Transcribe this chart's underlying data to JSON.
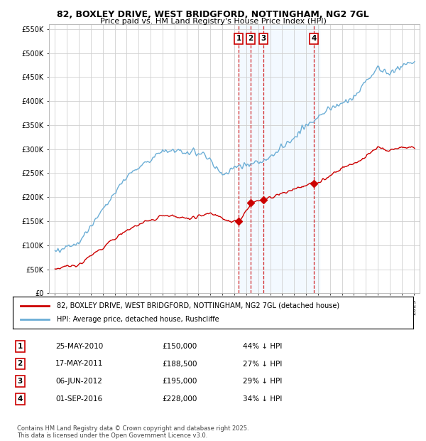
{
  "title1": "82, BOXLEY DRIVE, WEST BRIDGFORD, NOTTINGHAM, NG2 7GL",
  "title2": "Price paid vs. HM Land Registry's House Price Index (HPI)",
  "legend_property": "82, BOXLEY DRIVE, WEST BRIDGFORD, NOTTINGHAM, NG2 7GL (detached house)",
  "legend_hpi": "HPI: Average price, detached house, Rushcliffe",
  "footer1": "Contains HM Land Registry data © Crown copyright and database right 2025.",
  "footer2": "This data is licensed under the Open Government Licence v3.0.",
  "transactions": [
    {
      "num": 1,
      "date": "25-MAY-2010",
      "price": 150000,
      "pct": "44%",
      "year": 2010.38
    },
    {
      "num": 2,
      "date": "17-MAY-2011",
      "price": 188500,
      "pct": "27%",
      "year": 2011.38
    },
    {
      "num": 3,
      "date": "06-JUN-2012",
      "price": 195000,
      "pct": "29%",
      "year": 2012.43
    },
    {
      "num": 4,
      "date": "01-SEP-2016",
      "price": 228000,
      "pct": "34%",
      "year": 2016.67
    }
  ],
  "ylim": [
    0,
    560000
  ],
  "xlim": [
    1994.5,
    2025.5
  ],
  "hpi_color": "#6baed6",
  "property_color": "#cc0000",
  "grid_color": "#d0d0d0",
  "bg_color": "#ffffff",
  "transaction_bg": "#ddeeff",
  "shade_alpha": 0.35
}
